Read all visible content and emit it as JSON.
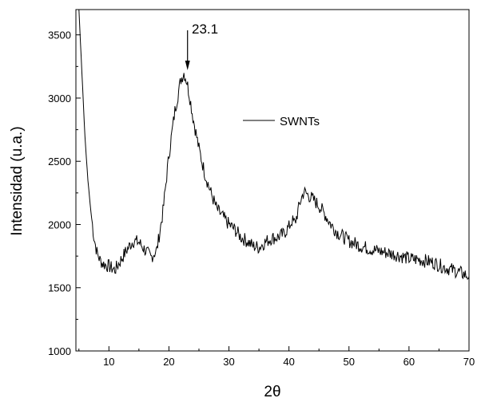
{
  "chart_data": {
    "type": "line",
    "title": "",
    "xlabel": "2θ",
    "ylabel": "Intensidad (u.a.)",
    "xlim": [
      4.5,
      70
    ],
    "ylim": [
      1000,
      3700
    ],
    "x_ticks": [
      10,
      20,
      30,
      40,
      50,
      60,
      70
    ],
    "y_ticks": [
      1000,
      1500,
      2000,
      2500,
      3000,
      3500
    ],
    "grid": false,
    "legend_placement": "center-right",
    "series": [
      {
        "name": "SWNTs",
        "color": "#000000",
        "x": [
          5,
          5.5,
          6,
          6.5,
          7,
          7.5,
          8,
          8.5,
          9,
          10,
          11,
          12,
          13,
          14,
          15,
          16,
          17,
          18,
          19,
          20,
          21,
          22,
          22.5,
          23,
          23.5,
          24,
          25,
          26,
          27,
          28,
          29,
          30,
          31,
          32,
          33,
          34,
          35,
          36,
          37,
          38,
          39,
          40,
          40.5,
          41,
          42,
          42.5,
          43,
          44,
          45,
          46,
          47,
          48,
          50,
          52,
          54,
          56,
          58,
          60,
          62,
          64,
          66,
          68,
          70
        ],
        "y": [
          3700,
          3200,
          2700,
          2350,
          2100,
          1900,
          1780,
          1720,
          1690,
          1670,
          1640,
          1720,
          1800,
          1870,
          1860,
          1800,
          1740,
          1800,
          2100,
          2550,
          2900,
          3150,
          3200,
          3130,
          3000,
          2850,
          2600,
          2400,
          2250,
          2120,
          2060,
          2000,
          1960,
          1900,
          1870,
          1830,
          1820,
          1860,
          1890,
          1900,
          1920,
          1980,
          2030,
          2010,
          2200,
          2260,
          2240,
          2200,
          2150,
          2080,
          2000,
          1940,
          1870,
          1830,
          1800,
          1780,
          1760,
          1730,
          1720,
          1700,
          1660,
          1630,
          1590
        ]
      }
    ],
    "annotations": [
      {
        "text": "23.1",
        "x": 23.1
      }
    ]
  }
}
